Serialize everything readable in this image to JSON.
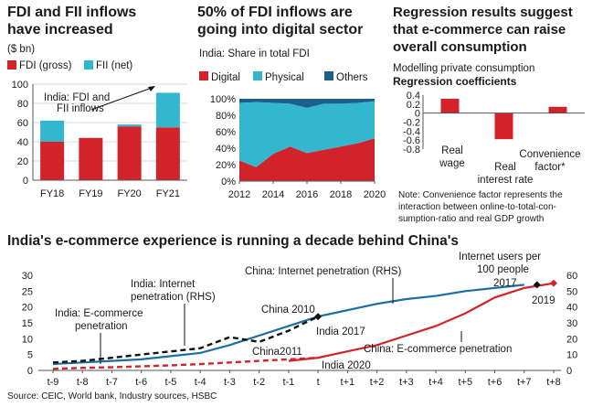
{
  "colors": {
    "red": "#d2232a",
    "cyan": "#33b7cf",
    "navy": "#1b5f8c",
    "blue": "#1b6fa0",
    "black": "#111111",
    "grid": "#cfcfcf"
  },
  "panel1": {
    "title_lines": [
      "FDI and FII inflows",
      "have increased"
    ],
    "unit": "($ bn)",
    "annotation_lines": [
      "India: FDI and",
      "FII inflows"
    ]
  },
  "panel2": {
    "title_lines": [
      "50% of FDI inflows are",
      "going into digital sector"
    ],
    "subtitle": "India: Share in total FDI"
  },
  "panel3": {
    "title_lines": [
      "Regression results suggest",
      "that e-commerce can raise",
      "overall consumption"
    ],
    "subtitle1": "Modelling private consumption",
    "subtitle2": "Regression coefficients",
    "note_lines": [
      "Note: Convenience factor represents the",
      "interaction between online-to-total-con-",
      "sumption-ratio and real GDP growth"
    ]
  },
  "panel4": {
    "title": "India's e-commerce experience is running a decade behind China's",
    "source": "Source: CEIC, World bank, Industry sources, HSBC",
    "annotations": {
      "india_internet": [
        "India: Internet",
        "penetration (RHS)"
      ],
      "india_ecom": [
        "India: E-commerce",
        "penetration"
      ],
      "china_internet": "China: Internet penetration (RHS)",
      "china_ecom": "China: E-commerce penetration",
      "internet_users": [
        "Internet users per",
        "100 people"
      ],
      "china_2010": "China 2010",
      "india_2017": "India 2017",
      "china_2011": "China2011",
      "india_2020": "India 2020",
      "year_2017": "2017",
      "year_2019": "2019"
    }
  },
  "chart_data": [
    {
      "type": "bar",
      "stacked": true,
      "categories": [
        "FY18",
        "FY19",
        "FY20",
        "FY21"
      ],
      "series": [
        {
          "name": "FDI (gross)",
          "color": "#d2232a",
          "values": [
            40,
            44,
            56,
            55
          ]
        },
        {
          "name": "FII (net)",
          "color": "#33b7cf",
          "values": [
            22,
            0,
            2,
            36
          ]
        }
      ],
      "ylim": [
        0,
        100
      ],
      "yticks": [
        0,
        20,
        40,
        60,
        80,
        100
      ],
      "legend": "top"
    },
    {
      "type": "area",
      "stacked": true,
      "x": [
        2012,
        2013,
        2014,
        2015,
        2016,
        2017,
        2018,
        2019,
        2020
      ],
      "xticks": [
        2012,
        2014,
        2016,
        2018,
        2020
      ],
      "series": [
        {
          "name": "Digital",
          "color": "#d2232a",
          "values": [
            25,
            17,
            33,
            42,
            34,
            38,
            42,
            46,
            52
          ]
        },
        {
          "name": "Physical",
          "color": "#33b7cf",
          "values": [
            70,
            79,
            62,
            52,
            55,
            56,
            52,
            49,
            45
          ]
        },
        {
          "name": "Others",
          "color": "#1b5f8c",
          "values": [
            5,
            4,
            5,
            6,
            11,
            6,
            6,
            5,
            3
          ]
        }
      ],
      "ylim": [
        0,
        100
      ],
      "yticks": [
        "0%",
        "20%",
        "40%",
        "60%",
        "80%",
        "100%"
      ],
      "legend": "top"
    },
    {
      "type": "bar",
      "categories": [
        [
          "Real",
          "wage"
        ],
        [
          "Real",
          "interest rate"
        ],
        [
          "Convenience",
          "factor*"
        ]
      ],
      "values": [
        0.32,
        -0.58,
        0.14
      ],
      "color": "#d2232a",
      "ylim": [
        -0.8,
        0.4
      ],
      "yticks": [
        "0.4",
        "0.2",
        "0",
        "-0.2",
        "-0.4",
        "-0.6",
        "-0.8"
      ]
    },
    {
      "type": "line",
      "x": [
        "t-9",
        "t-8",
        "t-7",
        "t-6",
        "t-5",
        "t-4",
        "t-3",
        "t-2",
        "t-1",
        "t",
        "t+1",
        "t+2",
        "t+3",
        "t+4",
        "t+5",
        "t+6",
        "t+7",
        "t+8"
      ],
      "y_left": {
        "ticks": [
          "0",
          "5",
          "10",
          "15",
          "20",
          "25",
          "30"
        ],
        "lim": [
          0,
          30
        ]
      },
      "y_right": {
        "ticks": [
          "0",
          "10",
          "20",
          "30",
          "40",
          "50",
          "60"
        ],
        "lim": [
          0,
          60
        ]
      },
      "series": [
        {
          "name": "China: Internet penetration (RHS)",
          "axis": "right",
          "color": "#1b6fa0",
          "style": "solid",
          "x": [
            0,
            1,
            2,
            3,
            4,
            5,
            6,
            7,
            8,
            9,
            10,
            11,
            12,
            13,
            14,
            15,
            16
          ],
          "values": [
            4,
            5,
            6,
            7,
            9,
            11,
            16,
            22,
            28,
            34,
            38,
            42,
            45,
            47,
            50,
            52,
            54
          ]
        },
        {
          "name": "India: Internet penetration (RHS)",
          "axis": "right",
          "color": "#111111",
          "style": "dashed",
          "x": [
            0,
            1,
            2,
            3,
            4,
            5,
            6,
            7,
            8,
            9
          ],
          "values": [
            5,
            6,
            8,
            10,
            12,
            14,
            21,
            18,
            25,
            34
          ]
        },
        {
          "name": "China: E-commerce penetration",
          "axis": "left",
          "color": "#d2232a",
          "style": "solid",
          "x": [
            8,
            9,
            10,
            11,
            12,
            13,
            14,
            15,
            16,
            17
          ],
          "values": [
            3,
            4,
            6,
            8,
            11,
            14,
            18,
            23,
            26,
            27.5
          ]
        },
        {
          "name": "India: E-commerce penetration",
          "axis": "left",
          "color": "#d2232a",
          "style": "dashed",
          "x": [
            0,
            1,
            2,
            3,
            4,
            5,
            6,
            7,
            8,
            9
          ],
          "values": [
            0.5,
            0.8,
            1,
            1.3,
            1.6,
            2,
            2.5,
            3,
            3.5,
            4
          ]
        }
      ]
    }
  ]
}
